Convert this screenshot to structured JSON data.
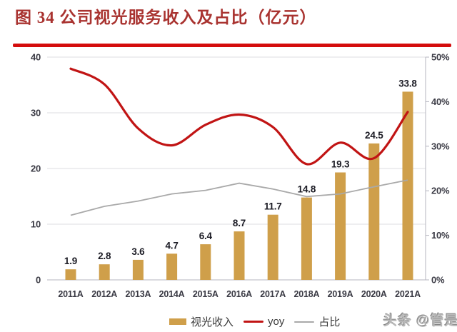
{
  "page": {
    "title": "图 34 公司视光服务收入及占比（亿元）",
    "watermark": "头条 @管是"
  },
  "colors": {
    "title": "#a93330",
    "rule": "#d40d0d",
    "bar": "#cf9f4a",
    "yoy": "#c11414",
    "ratio": "#a9a9a9",
    "grid": "#dddde2",
    "axis": "#b5b5bf",
    "axis_text": "#3a3a44",
    "label": "#1b1b24"
  },
  "legend": [
    {
      "label": "视光收入"
    },
    {
      "label": "yoy"
    },
    {
      "label": "占比"
    }
  ],
  "chart_data": {
    "type": "combo (bar + smooth line + line, dual axis)",
    "title": "图 34 公司视光服务收入及占比（亿元）",
    "categories": [
      "2011A",
      "2012A",
      "2013A",
      "2014A",
      "2015A",
      "2016A",
      "2017A",
      "2018A",
      "2019A",
      "2020A",
      "2021A"
    ],
    "series": [
      {
        "name": "视光收入",
        "type": "bar",
        "axis": "left",
        "unit": "亿元",
        "values": [
          1.9,
          2.8,
          3.6,
          4.7,
          6.4,
          8.7,
          11.7,
          14.8,
          19.3,
          24.5,
          33.8
        ],
        "labels": [
          "1.9",
          "2.8",
          "3.6",
          "4.7",
          "6.4",
          "8.7",
          "11.7",
          "14.8",
          "19.3",
          "24.5",
          "33.8"
        ]
      },
      {
        "name": "yoy",
        "type": "line",
        "smooth": true,
        "axis": "right",
        "values_pct": [
          47.4,
          43.9,
          34.0,
          30.2,
          34.8,
          37.1,
          34.3,
          26.0,
          30.8,
          27.3,
          37.7
        ]
      },
      {
        "name": "占比",
        "type": "line",
        "smooth": false,
        "axis": "right",
        "values_pct": [
          14.5,
          16.5,
          17.7,
          19.3,
          20.1,
          21.7,
          20.4,
          18.7,
          19.3,
          20.9,
          22.4
        ]
      }
    ],
    "left_axis": {
      "min": 0,
      "max": 40,
      "tick_labels": [
        "0",
        "10",
        "20",
        "30",
        "40"
      ]
    },
    "right_axis": {
      "min": 0,
      "max": 50,
      "tick_labels": [
        "0%",
        "10%",
        "20%",
        "30%",
        "40%",
        "50%"
      ]
    },
    "grid": "horizontal only",
    "legend_position": "bottom"
  }
}
